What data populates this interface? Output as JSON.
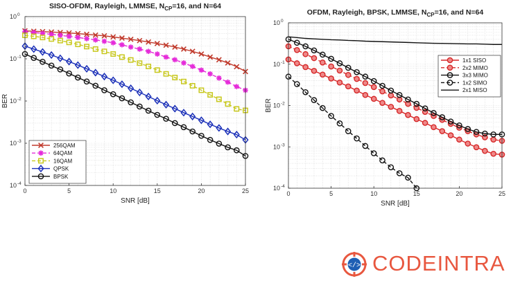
{
  "chart_data": [
    {
      "type": "line",
      "title_main": "SISO-OFDM, Rayleigh, LMMSE, N",
      "title_sub": "CP",
      "title_rest": "=16, and N=64",
      "xlabel": "SNR [dB]",
      "ylabel": "BER",
      "xlim": [
        0,
        25
      ],
      "ylim": [
        0.0001,
        1
      ],
      "yscale": "log",
      "grid": true,
      "legend_position": "bottom-left",
      "x_ticks": [
        "0",
        "5",
        "10",
        "15",
        "20",
        "25"
      ],
      "x": [
        0,
        1,
        2,
        3,
        4,
        5,
        6,
        7,
        8,
        9,
        10,
        11,
        12,
        13,
        14,
        15,
        16,
        17,
        18,
        19,
        20,
        21,
        22,
        23,
        24,
        25
      ],
      "series": [
        {
          "name": "256QAM",
          "color": "#c0392b",
          "marker": "x",
          "dash": "solid",
          "values": [
            0.46,
            0.45,
            0.44,
            0.43,
            0.42,
            0.41,
            0.395,
            0.38,
            0.365,
            0.35,
            0.33,
            0.31,
            0.29,
            0.27,
            0.25,
            0.23,
            0.21,
            0.19,
            0.17,
            0.15,
            0.13,
            0.11,
            0.095,
            0.08,
            0.065,
            0.05
          ]
        },
        {
          "name": "64QAM",
          "color": "#e52bd9",
          "marker": "star",
          "dash": "dashed",
          "values": [
            0.44,
            0.42,
            0.4,
            0.38,
            0.36,
            0.34,
            0.32,
            0.3,
            0.28,
            0.26,
            0.24,
            0.215,
            0.19,
            0.17,
            0.15,
            0.13,
            0.11,
            0.095,
            0.08,
            0.066,
            0.054,
            0.044,
            0.035,
            0.028,
            0.022,
            0.018
          ]
        },
        {
          "name": "16QAM",
          "color": "#c8c81e",
          "marker": "square",
          "dash": "dashed",
          "values": [
            0.36,
            0.34,
            0.32,
            0.295,
            0.27,
            0.245,
            0.22,
            0.195,
            0.17,
            0.15,
            0.13,
            0.11,
            0.094,
            0.079,
            0.066,
            0.054,
            0.044,
            0.036,
            0.029,
            0.023,
            0.018,
            0.014,
            0.011,
            0.0085,
            0.0065,
            0.006
          ]
        },
        {
          "name": "QPSK",
          "color": "#1a2fb8",
          "marker": "diamond",
          "dash": "solid",
          "values": [
            0.2,
            0.17,
            0.145,
            0.123,
            0.103,
            0.086,
            0.071,
            0.058,
            0.047,
            0.038,
            0.031,
            0.025,
            0.02,
            0.016,
            0.0128,
            0.0102,
            0.0082,
            0.0066,
            0.0053,
            0.0043,
            0.0035,
            0.0028,
            0.0023,
            0.0019,
            0.0016,
            0.0012
          ]
        },
        {
          "name": "BPSK",
          "color": "#111111",
          "marker": "circle",
          "dash": "solid",
          "values": [
            0.13,
            0.105,
            0.085,
            0.069,
            0.056,
            0.045,
            0.036,
            0.029,
            0.023,
            0.018,
            0.0145,
            0.0116,
            0.0093,
            0.0074,
            0.0059,
            0.0047,
            0.0038,
            0.003,
            0.0024,
            0.0019,
            0.0015,
            0.0012,
            0.00098,
            0.0008,
            0.00068,
            0.0005
          ]
        }
      ]
    },
    {
      "type": "line",
      "title_main": "OFDM, Rayleigh, BPSK, LMMSE, N",
      "title_sub": "CP",
      "title_rest": "=16, and N=64",
      "xlabel": "SNR [dB]",
      "ylabel": "BER",
      "xlim": [
        0,
        25
      ],
      "ylim": [
        0.0001,
        1
      ],
      "yscale": "log",
      "grid": true,
      "legend_position": "top-right",
      "x_ticks": [
        "0",
        "5",
        "10",
        "15",
        "20",
        "25"
      ],
      "x": [
        0,
        1,
        2,
        3,
        4,
        5,
        6,
        7,
        8,
        9,
        10,
        11,
        12,
        13,
        14,
        15,
        16,
        17,
        18,
        19,
        20,
        21,
        22,
        23,
        24,
        25
      ],
      "series": [
        {
          "name": "1x1 SISO",
          "color": "#d62728",
          "marker": "circle",
          "dash": "solid",
          "marker_fill": "#ee8888",
          "values": [
            0.13,
            0.105,
            0.085,
            0.069,
            0.056,
            0.045,
            0.036,
            0.029,
            0.023,
            0.018,
            0.0145,
            0.0116,
            0.0093,
            0.0074,
            0.0059,
            0.0047,
            0.0038,
            0.003,
            0.0024,
            0.0019,
            0.0015,
            0.0012,
            0.00098,
            0.0008,
            0.00068,
            0.00065
          ]
        },
        {
          "name": "2x2 MIMO",
          "color": "#d62728",
          "marker": "circle",
          "dash": "dashed",
          "marker_fill": "#ee8888",
          "values": [
            0.27,
            0.22,
            0.175,
            0.14,
            0.11,
            0.088,
            0.07,
            0.055,
            0.044,
            0.035,
            0.028,
            0.022,
            0.0175,
            0.014,
            0.011,
            0.0088,
            0.007,
            0.0056,
            0.0045,
            0.0036,
            0.0029,
            0.0024,
            0.002,
            0.0017,
            0.0015,
            0.0014
          ]
        },
        {
          "name": "3x3 MIMO",
          "color": "#111111",
          "marker": "circle",
          "dash": "solid",
          "marker_fill": "none",
          "values": [
            0.4,
            0.33,
            0.27,
            0.215,
            0.17,
            0.135,
            0.105,
            0.082,
            0.064,
            0.05,
            0.039,
            0.03,
            0.023,
            0.018,
            0.014,
            0.011,
            0.0085,
            0.0066,
            0.0052,
            0.0041,
            0.0033,
            0.0027,
            0.0023,
            0.0021,
            0.002,
            0.002
          ]
        },
        {
          "name": "1x2 SIMO",
          "color": "#111111",
          "marker": "circle",
          "dash": "dashed",
          "marker_fill": "none",
          "x": [
            0,
            1,
            2,
            3,
            4,
            5,
            6,
            7,
            8,
            9,
            10,
            11,
            12,
            13,
            14,
            15
          ],
          "values": [
            0.05,
            0.033,
            0.021,
            0.0135,
            0.0087,
            0.0056,
            0.0037,
            0.0024,
            0.0016,
            0.00105,
            0.0007,
            0.00047,
            0.00032,
            0.00023,
            0.00018,
            0.0001
          ]
        },
        {
          "name": "2x1 MISO",
          "color": "#111111",
          "marker": "none",
          "dash": "solid",
          "marker_fill": "none",
          "values": [
            0.46,
            0.44,
            0.42,
            0.41,
            0.4,
            0.39,
            0.385,
            0.375,
            0.37,
            0.36,
            0.355,
            0.35,
            0.345,
            0.34,
            0.335,
            0.33,
            0.325,
            0.32,
            0.318,
            0.315,
            0.312,
            0.31,
            0.31,
            0.305,
            0.3,
            0.3
          ]
        }
      ]
    }
  ],
  "logo": {
    "text": "CODEINTRA",
    "color": "#e8573f",
    "icon": "code-target-icon",
    "icon_bg": "#ffffff",
    "icon_ring": "#e8573f",
    "icon_core": "#1f5fb4"
  }
}
